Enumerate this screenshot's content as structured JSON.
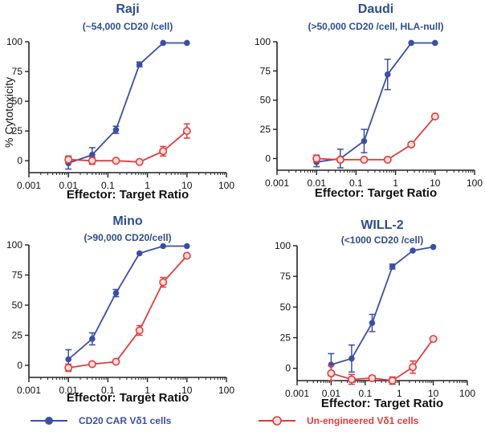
{
  "figure": {
    "ylabel": "% Cytotoxicity",
    "colors": {
      "car": "#3b4ea8",
      "uneng": "#e23b3b",
      "uneng_fill": "#f3dede"
    },
    "legend": [
      {
        "name": "CD20 CAR Vδ1 cells",
        "marker": "filled-circle",
        "color": "#3b4ea8"
      },
      {
        "name": "Un-engineered Vδ1 cells",
        "marker": "open-circle",
        "color": "#e23b3b"
      }
    ]
  },
  "chart_data": [
    {
      "type": "line",
      "title": "Raji",
      "subtitle": "(~54,000 CD20 /cell)",
      "xlabel": "Effector: Target Ratio",
      "ylabel": "% Cytotoxicity",
      "xscale": "log",
      "xlim": [
        0.001,
        100
      ],
      "ylim": [
        -10,
        100
      ],
      "xticks": [
        "0.001",
        "0.01",
        "0.1",
        "1",
        "10",
        "100"
      ],
      "yticks": [
        0,
        25,
        50,
        75,
        100
      ],
      "x": [
        0.01,
        0.04,
        0.16,
        0.63,
        2.5,
        10
      ],
      "series": [
        {
          "name": "CD20 CAR Vδ1 cells",
          "values": [
            -2,
            5,
            26,
            81,
            99,
            99
          ],
          "errors": [
            5,
            6,
            3,
            2,
            0,
            0
          ]
        },
        {
          "name": "Un-engineered Vδ1 cells",
          "values": [
            1,
            0,
            0,
            -1,
            8,
            25
          ],
          "errors": [
            3,
            3,
            0,
            0,
            4,
            6
          ]
        }
      ]
    },
    {
      "type": "line",
      "title": "Daudi",
      "subtitle": "(>50,000 CD20 /cell, HLA-null)",
      "xlabel": "Effector: Target Ratio",
      "ylabel": "",
      "xscale": "log",
      "xlim": [
        0.001,
        100
      ],
      "ylim": [
        -10,
        100
      ],
      "xticks": [
        "0.001",
        "0.01",
        "0.1",
        "1",
        "10",
        "100"
      ],
      "yticks": [
        0,
        25,
        50,
        75,
        100
      ],
      "x": [
        0.01,
        0.04,
        0.16,
        0.63,
        2.5,
        10
      ],
      "series": [
        {
          "name": "CD20 CAR Vδ1 cells",
          "values": [
            -3,
            0,
            15,
            72,
            99,
            99
          ],
          "errors": [
            4,
            8,
            10,
            13,
            0,
            0
          ]
        },
        {
          "name": "Un-engineered Vδ1 cells",
          "values": [
            0,
            -1,
            -1,
            -1,
            12,
            36
          ],
          "errors": [
            3,
            2,
            0,
            0,
            0,
            0
          ]
        }
      ]
    },
    {
      "type": "line",
      "title": "Mino",
      "subtitle": "(>90,000 CD20/cell)",
      "xlabel": "Effector: Target Ratio",
      "ylabel": "",
      "xscale": "log",
      "xlim": [
        0.001,
        100
      ],
      "ylim": [
        -10,
        100
      ],
      "xticks": [
        "0.001",
        "0.01",
        "0.1",
        "1",
        "10",
        "100"
      ],
      "yticks": [
        0,
        25,
        50,
        75,
        100
      ],
      "x": [
        0.01,
        0.04,
        0.16,
        0.63,
        2.5,
        10
      ],
      "series": [
        {
          "name": "CD20 CAR Vδ1 cells",
          "values": [
            5,
            22,
            60,
            93,
            99,
            99
          ],
          "errors": [
            8,
            5,
            3,
            0,
            0,
            0
          ]
        },
        {
          "name": "Un-engineered Vδ1 cells",
          "values": [
            -2,
            1,
            3,
            29,
            69,
            91
          ],
          "errors": [
            3,
            0,
            0,
            4,
            4,
            0
          ]
        }
      ]
    },
    {
      "type": "line",
      "title": "WILL-2",
      "subtitle": "(<1000 CD20 /cell)",
      "xlabel": "Effector: Target Ratio",
      "ylabel": "",
      "xscale": "log",
      "xlim": [
        0.001,
        100
      ],
      "ylim": [
        -10,
        100
      ],
      "xticks": [
        "0.001",
        "0.01",
        "0.1",
        "1",
        "10",
        "100"
      ],
      "yticks": [
        0,
        25,
        50,
        75,
        100
      ],
      "x": [
        0.01,
        0.04,
        0.16,
        0.63,
        2.5,
        10
      ],
      "series": [
        {
          "name": "CD20 CAR Vδ1 cells",
          "values": [
            3,
            8,
            37,
            83,
            96,
            99
          ],
          "errors": [
            9,
            11,
            7,
            2,
            0,
            0
          ]
        },
        {
          "name": "Un-engineered Vδ1 cells",
          "values": [
            -4,
            -9,
            -8,
            -10,
            1,
            24
          ],
          "errors": [
            6,
            4,
            2,
            3,
            5,
            0
          ]
        }
      ]
    }
  ]
}
